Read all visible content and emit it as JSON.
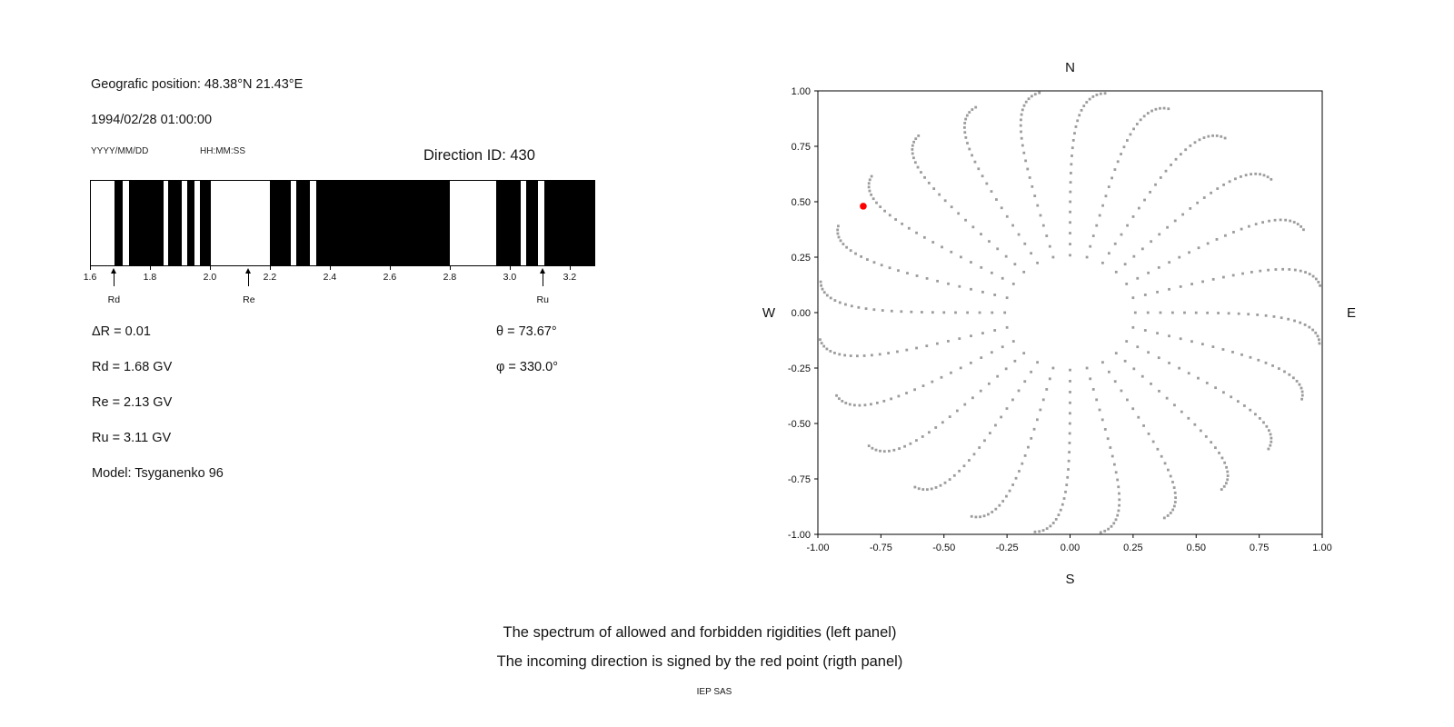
{
  "header": {
    "geo_position": "Geografic position: 48.38°N 21.43°E",
    "datetime": "1994/02/28 01:00:00",
    "date_format": "YYYY/MM/DD",
    "time_format": "HH:MM:SS",
    "direction_id": "Direction ID: 430"
  },
  "info": {
    "delta_r": "ΔR = 0.01",
    "rd": "Rd = 1.68 GV",
    "re": "Re = 2.13 GV",
    "ru": "Ru = 3.11 GV",
    "model": "Model: Tsyganenko 96",
    "theta": "θ = 73.67°",
    "phi": "φ = 330.0°"
  },
  "caption": {
    "line1": "The spectrum of allowed and forbidden rigidities (left panel)",
    "line2": "The incoming direction is signed by the red point (rigth panel)",
    "credit": "IEP SAS"
  },
  "chart_data": [
    {
      "id": "rigidity-spectrum",
      "type": "bar",
      "description": "Binary spectrum of allowed (black) and forbidden (white) rigidities",
      "xlim": [
        1.6,
        3.285
      ],
      "xticks": [
        1.6,
        1.8,
        2.0,
        2.2,
        2.4,
        2.6,
        2.8,
        3.0,
        3.2
      ],
      "band_color": "#000000",
      "background_color": "#ffffff",
      "allowed_bands_gv": [
        [
          1.679,
          1.706
        ],
        [
          1.727,
          1.842
        ],
        [
          1.858,
          1.903
        ],
        [
          1.921,
          1.948
        ],
        [
          1.964,
          2.003
        ],
        [
          2.2,
          2.27
        ],
        [
          2.288,
          2.333
        ],
        [
          2.355,
          2.8
        ],
        [
          2.958,
          3.039
        ],
        [
          3.058,
          3.097
        ],
        [
          3.118,
          3.285
        ]
      ],
      "markers": [
        {
          "label": "Rd",
          "gv": 1.68
        },
        {
          "label": "Re",
          "gv": 2.13
        },
        {
          "label": "Ru",
          "gv": 3.11
        }
      ]
    },
    {
      "id": "incoming-direction",
      "type": "scatter",
      "description": "Grid of incoming directions projected as r = sin(zenith); red point marks the incoming direction",
      "xlim": [
        -1,
        1
      ],
      "ylim": [
        -1,
        1
      ],
      "xticks": [
        -1.0,
        -0.75,
        -0.5,
        -0.25,
        0.0,
        0.25,
        0.5,
        0.75,
        1.0
      ],
      "yticks": [
        -1.0,
        -0.75,
        -0.5,
        -0.25,
        0.0,
        0.25,
        0.5,
        0.75,
        1.0
      ],
      "xtick_labels": [
        "-1.00",
        "-0.75",
        "-0.50",
        "-0.25",
        "0.00",
        "0.25",
        "0.50",
        "0.75",
        "1.00"
      ],
      "ytick_labels": [
        "-1.00",
        "-0.75",
        "-0.50",
        "-0.25",
        "0.00",
        "0.25",
        "0.50",
        "0.75",
        "1.00"
      ],
      "grid": false,
      "compass": {
        "top": "N",
        "bottom": "S",
        "left": "W",
        "right": "E"
      },
      "dot_color": "#9c9c9c",
      "spokes": {
        "azimuth_start_deg": 0,
        "azimuth_step_deg": 15,
        "azimuth_count": 24,
        "zenith_min_deg": 15,
        "zenith_max_deg": 87,
        "zenith_step_deg": 3,
        "twist_deg": 8,
        "twist_power": 3,
        "radius": "sin(zenith)"
      },
      "red_point": {
        "x": -0.82,
        "y": 0.48,
        "color": "#ff0000"
      }
    }
  ]
}
